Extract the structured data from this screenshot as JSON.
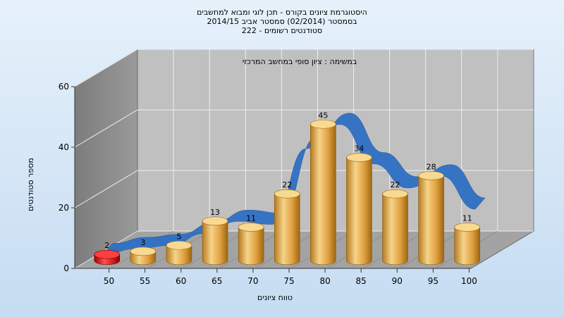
{
  "chart_data": {
    "type": "bar",
    "title": "היסטוגרמת ציונים בקורס - תכן לוגי ומבוא למחשבים",
    "subtitle": "בסמסטר  (02/2014)  סמסטר אביב 2014/15",
    "subtitle2": "סטודנטים רשומים - 222",
    "annotation": "במשימה : ציון סופי במחשב המרכזי",
    "xlabel": "טווח ציונים",
    "ylabel": "מספר סטודנטים",
    "x_ticks": [
      "50",
      "55",
      "60",
      "65",
      "70",
      "75",
      "80",
      "85",
      "90",
      "95",
      "100"
    ],
    "y_ticks": [
      "0",
      "20",
      "40",
      "60"
    ],
    "ylim": [
      0,
      60
    ],
    "grid": true,
    "categories": [
      "50",
      "55",
      "60",
      "65",
      "70",
      "75",
      "80",
      "85",
      "90",
      "95",
      "100"
    ],
    "series": [
      {
        "values": [
          2,
          3,
          5,
          13,
          11,
          22,
          45,
          34,
          22,
          28,
          11
        ],
        "labels": [
          "2",
          "3",
          "5",
          "13",
          "11",
          "22",
          "45",
          "34",
          "22",
          "28",
          "11"
        ]
      }
    ],
    "curve_values": [
      3,
      5,
      6,
      10,
      14,
      13,
      38,
      46,
      33,
      25,
      29,
      18
    ]
  },
  "colors": {
    "bar": "#e3a645",
    "bar_light": "#f7d98f",
    "bar_dark": "#a86f18",
    "highlight_bar": "#e02020",
    "curve": "#2f6fc4",
    "wall": "#8a8a8a",
    "floor": "#a3a3a3",
    "back": "#c0c0c0"
  }
}
